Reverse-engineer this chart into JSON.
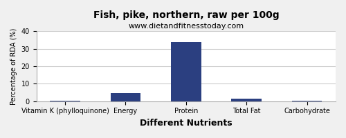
{
  "title": "Fish, pike, northern, raw per 100g",
  "subtitle": "www.dietandfitnesstoday.com",
  "xlabel": "Different Nutrients",
  "ylabel": "Percentage of RDA (%)",
  "categories": [
    "Vitamin K (phylloquinone)",
    "Energy",
    "Protein",
    "Total Fat",
    "Carbohydrate"
  ],
  "values": [
    0.1,
    4.5,
    34.0,
    1.5,
    0.1
  ],
  "bar_color": "#2b3f80",
  "ylim": [
    0,
    40
  ],
  "yticks": [
    0,
    10,
    20,
    30,
    40
  ],
  "background_color": "#f0f0f0",
  "plot_bg_color": "#ffffff",
  "title_fontsize": 10,
  "subtitle_fontsize": 8,
  "xlabel_fontsize": 9,
  "ylabel_fontsize": 7,
  "tick_fontsize": 7,
  "grid_color": "#cccccc"
}
